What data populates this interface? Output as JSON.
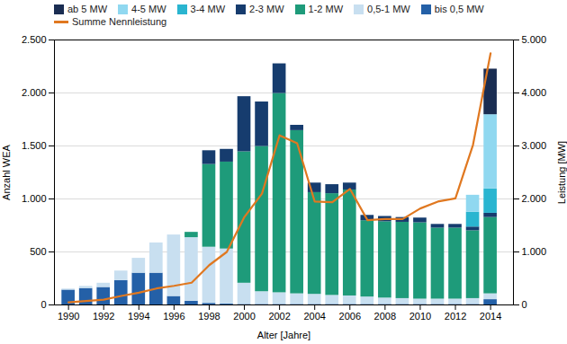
{
  "chart_data": {
    "type": "bar",
    "stacked": true,
    "x": [
      1990,
      1991,
      1992,
      1993,
      1994,
      1995,
      1996,
      1997,
      1998,
      1999,
      2000,
      2001,
      2002,
      2003,
      2004,
      2005,
      2006,
      2007,
      2008,
      2009,
      2010,
      2011,
      2012,
      2013,
      2014
    ],
    "xlim": [
      1989.2,
      2015.3
    ],
    "xticks": [
      1990,
      1992,
      1994,
      1996,
      1998,
      2000,
      2002,
      2004,
      2006,
      2008,
      2010,
      2012,
      2014
    ],
    "xlabel": "Alter [Jahre]",
    "ylabel": "Anzahl WEA",
    "ylim": [
      0,
      2500
    ],
    "yticks": [
      0,
      500,
      {
        "value": 1000,
        "label": "1.000"
      },
      {
        "value": 1500,
        "label": "1.500"
      },
      {
        "value": 2000,
        "label": "2.000"
      },
      {
        "value": 2500,
        "label": "2.500"
      }
    ],
    "y2label": "Leistung [MW]",
    "y2lim": [
      0,
      5000
    ],
    "y2ticks": [
      0,
      {
        "value": 1000,
        "label": "1.000"
      },
      {
        "value": 2000,
        "label": "2.000"
      },
      {
        "value": 3000,
        "label": "3.000"
      },
      {
        "value": 4000,
        "label": "4.000"
      },
      {
        "value": 5000,
        "label": "5.000"
      }
    ],
    "grid": true,
    "legend": "upper left",
    "series": [
      {
        "name": "bis 0,5 MW",
        "color": "#2460a7",
        "values": [
          140,
          155,
          165,
          230,
          300,
          300,
          80,
          35,
          15,
          8,
          5,
          5,
          5,
          5,
          5,
          5,
          5,
          5,
          5,
          5,
          5,
          5,
          5,
          5,
          50
        ]
      },
      {
        "name": "0,5-1 MW",
        "color": "#c8dff0",
        "values": [
          10,
          20,
          40,
          90,
          140,
          285,
          580,
          600,
          530,
          520,
          200,
          120,
          110,
          100,
          95,
          85,
          80,
          70,
          60,
          55,
          50,
          50,
          50,
          55,
          55
        ]
      },
      {
        "name": "1-2 MW",
        "color": "#1e9b7a",
        "values": [
          0,
          0,
          0,
          0,
          0,
          0,
          0,
          50,
          780,
          820,
          1240,
          1370,
          1880,
          1540,
          960,
          960,
          1000,
          720,
          720,
          720,
          720,
          670,
          670,
          640,
          720
        ]
      },
      {
        "name": "2-3 MW",
        "color": "#163c6e",
        "values": [
          0,
          0,
          0,
          0,
          0,
          0,
          0,
          0,
          130,
          120,
          520,
          420,
          280,
          50,
          90,
          85,
          65,
          50,
          50,
          45,
          45,
          35,
          35,
          35,
          40
        ]
      },
      {
        "name": "3-4 MW",
        "color": "#2ab5d0",
        "values": [
          0,
          0,
          0,
          0,
          0,
          0,
          0,
          0,
          0,
          0,
          0,
          0,
          0,
          0,
          0,
          0,
          0,
          0,
          0,
          0,
          0,
          0,
          0,
          140,
          230
        ]
      },
      {
        "name": "4-5 MW",
        "color": "#90d8f0",
        "values": [
          0,
          0,
          0,
          0,
          0,
          0,
          0,
          0,
          0,
          0,
          0,
          0,
          0,
          0,
          0,
          0,
          0,
          0,
          0,
          0,
          0,
          0,
          0,
          160,
          700
        ]
      },
      {
        "name": "ab 5 MW",
        "color": "#1a2d52",
        "values": [
          0,
          0,
          0,
          0,
          0,
          0,
          0,
          0,
          0,
          0,
          0,
          0,
          0,
          0,
          0,
          0,
          0,
          0,
          0,
          0,
          0,
          0,
          0,
          0,
          430
        ]
      },
      {
        "name": "Summe Nennleistung",
        "type": "line",
        "axis": "y2",
        "color": "#e07820",
        "values": [
          50,
          75,
          100,
          170,
          230,
          310,
          360,
          420,
          750,
          1000,
          1660,
          2100,
          3200,
          3050,
          1950,
          1940,
          2190,
          1600,
          1620,
          1620,
          1820,
          1950,
          2010,
          3020,
          4750
        ]
      }
    ]
  }
}
